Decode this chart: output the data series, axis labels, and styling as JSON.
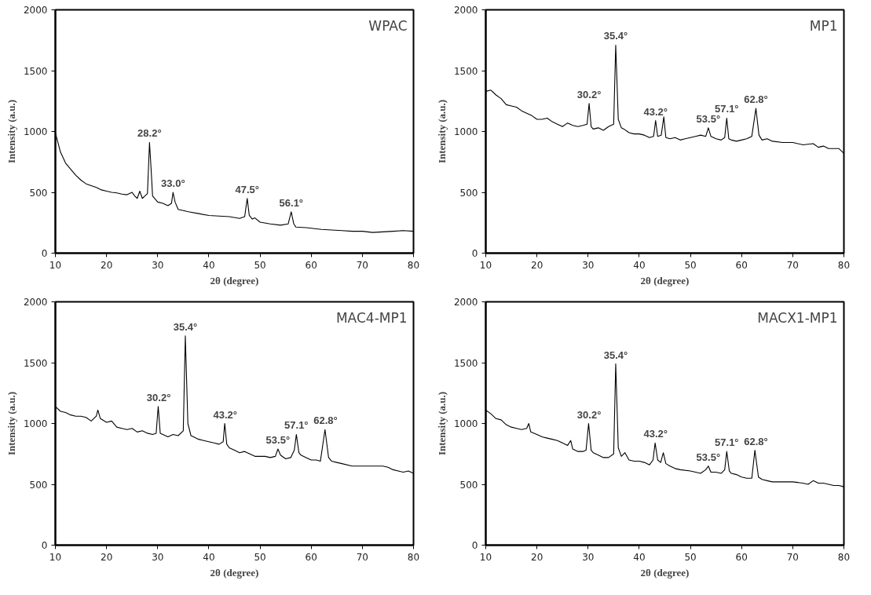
{
  "chart_data": [
    {
      "type": "line",
      "title": "WPAC",
      "xlabel": "2θ (degree)",
      "ylabel": "Intensity (a.u.)",
      "color": "#000000",
      "xlim": [
        10,
        80
      ],
      "ylim": [
        0,
        2000
      ],
      "xticks": [
        10,
        20,
        30,
        40,
        50,
        60,
        70,
        80
      ],
      "yticks": [
        0,
        500,
        1000,
        1500,
        2000
      ],
      "x": [
        10,
        11,
        12,
        13,
        14,
        15,
        16,
        17,
        18,
        19,
        20,
        21,
        22,
        23,
        24,
        25,
        25.5,
        26,
        26.5,
        27,
        27.5,
        28,
        28.2,
        28.4,
        28.7,
        29,
        30,
        31,
        32,
        32.7,
        33,
        33.4,
        34,
        35,
        36,
        38,
        40,
        42,
        44,
        46,
        47,
        47.5,
        47.9,
        48.5,
        49,
        50,
        52,
        54,
        55.5,
        56.1,
        56.6,
        57,
        59,
        60,
        62,
        64,
        66,
        68,
        70,
        72,
        74,
        76,
        78,
        80
      ],
      "values": [
        990,
        830,
        740,
        690,
        640,
        600,
        570,
        555,
        540,
        520,
        510,
        500,
        495,
        485,
        480,
        500,
        470,
        450,
        510,
        450,
        470,
        490,
        700,
        910,
        700,
        470,
        420,
        410,
        390,
        410,
        500,
        420,
        360,
        350,
        340,
        325,
        310,
        305,
        300,
        285,
        300,
        450,
        310,
        280,
        290,
        255,
        240,
        230,
        240,
        340,
        240,
        215,
        210,
        205,
        195,
        190,
        185,
        180,
        180,
        170,
        175,
        180,
        185,
        180
      ],
      "annotations": [
        {
          "text": "28.2°",
          "x": 28.4,
          "y": 910
        },
        {
          "text": "33.0°",
          "x": 33.0,
          "y": 500
        },
        {
          "text": "47.5°",
          "x": 47.5,
          "y": 450
        },
        {
          "text": "56.1°",
          "x": 56.1,
          "y": 340
        }
      ]
    },
    {
      "type": "line",
      "title": "MP1",
      "xlabel": "2θ (degree)",
      "ylabel": "Intensity (a.u.)",
      "color": "#000000",
      "xlim": [
        10,
        80
      ],
      "ylim": [
        0,
        2000
      ],
      "xticks": [
        10,
        20,
        30,
        40,
        50,
        60,
        70,
        80
      ],
      "yticks": [
        0,
        500,
        1000,
        1500,
        2000
      ],
      "x": [
        10,
        11,
        12,
        13,
        14,
        15,
        16,
        17,
        18,
        19,
        20,
        21,
        22,
        23,
        24,
        25,
        26,
        27,
        28,
        29,
        29.8,
        30.2,
        30.6,
        31,
        32,
        33,
        34,
        35,
        35.4,
        35.9,
        36.5,
        37,
        38,
        39,
        40,
        41,
        42,
        42.8,
        43.2,
        43.6,
        44.3,
        44.8,
        45.2,
        46,
        47,
        48,
        49,
        50,
        51,
        52,
        53,
        53.5,
        54,
        55,
        56,
        56.7,
        57.1,
        57.5,
        58,
        59,
        60,
        61,
        62,
        62.8,
        63.4,
        64,
        65,
        66,
        68,
        70,
        72,
        74,
        75,
        76,
        77,
        78,
        79,
        80
      ],
      "values": [
        1330,
        1340,
        1300,
        1270,
        1220,
        1210,
        1200,
        1170,
        1150,
        1130,
        1100,
        1100,
        1110,
        1080,
        1060,
        1040,
        1070,
        1050,
        1040,
        1050,
        1060,
        1230,
        1040,
        1020,
        1030,
        1010,
        1040,
        1060,
        1710,
        1100,
        1030,
        1020,
        990,
        980,
        980,
        970,
        950,
        960,
        1090,
        960,
        970,
        1120,
        950,
        940,
        950,
        930,
        940,
        950,
        960,
        970,
        960,
        1030,
        960,
        940,
        930,
        950,
        1110,
        940,
        930,
        920,
        930,
        940,
        960,
        1190,
        970,
        930,
        940,
        920,
        910,
        910,
        890,
        900,
        870,
        880,
        860,
        860,
        860,
        820
      ],
      "annotations": [
        {
          "text": "30.2°",
          "x": 30.2,
          "y": 1230
        },
        {
          "text": "35.4°",
          "x": 35.4,
          "y": 1710
        },
        {
          "text": "43.2°",
          "x": 43.2,
          "y": 1090
        },
        {
          "text": "53.5°",
          "x": 53.5,
          "y": 1030
        },
        {
          "text": "57.1°",
          "x": 57.1,
          "y": 1110
        },
        {
          "text": "62.8°",
          "x": 62.8,
          "y": 1190
        }
      ]
    },
    {
      "type": "line",
      "title": "MAC4-MP1",
      "xlabel": "2θ (degree)",
      "ylabel": "Intensity (a.u.)",
      "color": "#000000",
      "xlim": [
        10,
        80
      ],
      "ylim": [
        0,
        2000
      ],
      "xticks": [
        10,
        20,
        30,
        40,
        50,
        60,
        70,
        80
      ],
      "yticks": [
        0,
        500,
        1000,
        1500,
        2000
      ],
      "x": [
        10,
        11,
        12,
        13,
        14,
        15,
        16,
        17,
        18,
        18.3,
        18.8,
        20,
        21,
        22,
        23,
        24,
        25,
        26,
        27,
        28,
        29,
        29.7,
        30.1,
        30.5,
        31,
        32,
        33,
        34,
        35,
        35.4,
        35.9,
        36.5,
        37,
        38,
        39,
        40,
        41,
        42,
        42.8,
        43.1,
        43.5,
        44,
        45,
        46,
        47,
        48,
        49,
        50,
        51,
        52,
        53,
        53.5,
        54,
        55,
        56,
        56.7,
        57.1,
        57.6,
        58,
        59,
        60,
        61,
        61.8,
        62.7,
        63.4,
        64,
        65,
        66,
        68,
        70,
        72,
        74,
        75,
        76,
        77,
        78,
        79,
        80
      ],
      "values": [
        1140,
        1100,
        1090,
        1070,
        1060,
        1060,
        1050,
        1020,
        1060,
        1110,
        1040,
        1010,
        1020,
        970,
        960,
        950,
        960,
        930,
        940,
        920,
        910,
        920,
        1140,
        920,
        910,
        890,
        910,
        900,
        940,
        1720,
        1000,
        900,
        890,
        870,
        860,
        850,
        840,
        830,
        850,
        1000,
        830,
        800,
        780,
        760,
        770,
        750,
        730,
        730,
        730,
        720,
        730,
        790,
        740,
        710,
        720,
        780,
        910,
        760,
        740,
        720,
        700,
        700,
        690,
        950,
        720,
        690,
        680,
        670,
        650,
        650,
        650,
        650,
        640,
        620,
        610,
        600,
        610,
        590
      ],
      "annotations": [
        {
          "text": "30.2°",
          "x": 30.2,
          "y": 1140
        },
        {
          "text": "35.4°",
          "x": 35.4,
          "y": 1720
        },
        {
          "text": "43.2°",
          "x": 43.2,
          "y": 1000
        },
        {
          "text": "53.5°",
          "x": 53.5,
          "y": 790
        },
        {
          "text": "57.1°",
          "x": 57.1,
          "y": 910
        },
        {
          "text": "62.8°",
          "x": 62.8,
          "y": 950
        }
      ]
    },
    {
      "type": "line",
      "title": "MACX1-MP1",
      "xlabel": "2θ (degree)",
      "ylabel": "Intensity (a.u.)",
      "color": "#000000",
      "xlim": [
        10,
        80
      ],
      "ylim": [
        0,
        2000
      ],
      "xticks": [
        10,
        20,
        30,
        40,
        50,
        60,
        70,
        80
      ],
      "yticks": [
        0,
        500,
        1000,
        1500,
        2000
      ],
      "x": [
        10,
        11,
        12,
        13,
        14,
        15,
        16,
        17,
        18,
        18.4,
        18.8,
        20,
        21,
        22,
        23,
        24,
        25,
        26,
        26.6,
        27,
        28,
        29,
        29.6,
        30.1,
        30.6,
        31,
        32,
        33,
        34,
        35,
        35.4,
        35.9,
        36.5,
        37.2,
        38,
        39,
        40,
        41,
        42,
        42.7,
        43.1,
        43.6,
        44.2,
        44.7,
        45.2,
        46,
        47,
        48,
        50,
        51,
        52,
        53,
        53.5,
        54,
        55,
        56,
        56.7,
        57.1,
        57.6,
        58,
        59,
        60,
        61,
        62,
        62.6,
        63.3,
        64,
        65,
        66,
        68,
        70,
        72,
        73,
        74,
        75,
        76,
        77,
        78,
        79,
        80
      ],
      "values": [
        1110,
        1080,
        1040,
        1030,
        990,
        970,
        960,
        950,
        960,
        1000,
        930,
        910,
        890,
        880,
        870,
        860,
        840,
        820,
        860,
        790,
        770,
        770,
        780,
        1000,
        780,
        760,
        740,
        720,
        720,
        750,
        1490,
        800,
        730,
        760,
        700,
        690,
        690,
        680,
        660,
        700,
        840,
        700,
        680,
        760,
        670,
        650,
        630,
        620,
        610,
        600,
        590,
        620,
        650,
        600,
        600,
        590,
        620,
        770,
        610,
        590,
        580,
        560,
        550,
        550,
        780,
        560,
        540,
        530,
        520,
        520,
        520,
        510,
        500,
        530,
        510,
        510,
        500,
        490,
        490,
        480
      ],
      "annotations": [
        {
          "text": "30.2°",
          "x": 30.2,
          "y": 1000
        },
        {
          "text": "35.4°",
          "x": 35.4,
          "y": 1490
        },
        {
          "text": "43.2°",
          "x": 43.2,
          "y": 840
        },
        {
          "text": "53.5°",
          "x": 53.5,
          "y": 650
        },
        {
          "text": "57.1°",
          "x": 57.1,
          "y": 770
        },
        {
          "text": "62.8°",
          "x": 62.8,
          "y": 780
        }
      ]
    }
  ]
}
